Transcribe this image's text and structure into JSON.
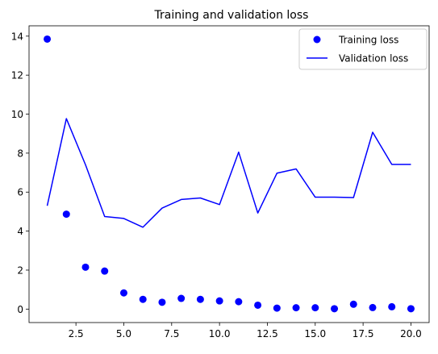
{
  "chart_data": {
    "type": "scatter",
    "title": "Training and validation loss",
    "xlabel": "",
    "ylabel": "",
    "xlim": [
      0.05,
      20.95
    ],
    "ylim": [
      -0.69,
      14.53
    ],
    "x_ticks": [
      2.5,
      5.0,
      7.5,
      10.0,
      12.5,
      15.0,
      17.5,
      20.0
    ],
    "x_tick_labels": [
      "2.5",
      "5.0",
      "7.5",
      "10.0",
      "12.5",
      "15.0",
      "17.5",
      "20.0"
    ],
    "y_ticks": [
      0,
      2,
      4,
      6,
      8,
      10,
      12,
      14
    ],
    "y_tick_labels": [
      "0",
      "2",
      "4",
      "6",
      "8",
      "10",
      "12",
      "14"
    ],
    "grid": false,
    "legend_position": "top-right",
    "x": [
      1,
      2,
      3,
      4,
      5,
      6,
      7,
      8,
      9,
      10,
      11,
      12,
      13,
      14,
      15,
      16,
      17,
      18,
      19,
      20
    ],
    "series": [
      {
        "name": "Training loss",
        "style": "points",
        "color": "#0000ff",
        "values": [
          13.85,
          4.87,
          2.15,
          1.95,
          0.83,
          0.5,
          0.35,
          0.55,
          0.5,
          0.42,
          0.38,
          0.2,
          0.05,
          0.07,
          0.07,
          0.02,
          0.25,
          0.08,
          0.12,
          0.02
        ]
      },
      {
        "name": "Validation loss",
        "style": "line",
        "color": "#0000ff",
        "values": [
          5.3,
          9.77,
          7.4,
          4.75,
          4.65,
          4.2,
          5.18,
          5.62,
          5.7,
          5.36,
          8.05,
          4.93,
          6.97,
          7.19,
          5.74,
          5.74,
          5.72,
          9.07,
          7.42,
          7.42
        ]
      }
    ]
  }
}
